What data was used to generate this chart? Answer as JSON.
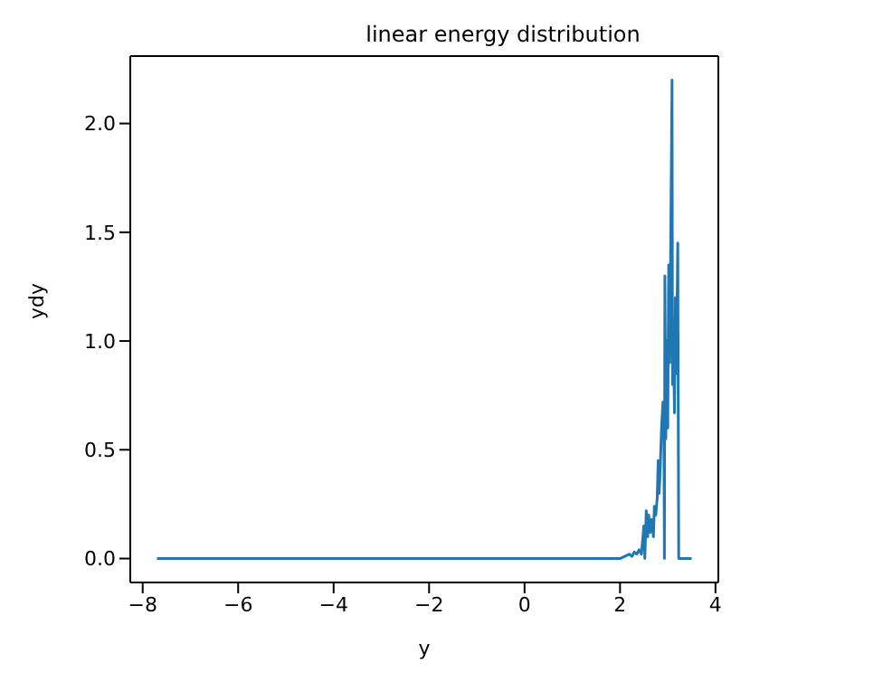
{
  "chart_data": {
    "type": "line",
    "title": "linear energy distribution",
    "xlabel": "y",
    "ylabel": "ydy",
    "x": [
      -7.7,
      1.7,
      1.9,
      2.0,
      2.1,
      2.2,
      2.25,
      2.3,
      2.35,
      2.4,
      2.45,
      2.48,
      2.5,
      2.52,
      2.55,
      2.58,
      2.6,
      2.63,
      2.66,
      2.7,
      2.72,
      2.75,
      2.78,
      2.8,
      2.82,
      2.84,
      2.87,
      2.9,
      2.92,
      2.93,
      2.94,
      2.96,
      2.98,
      3.0,
      3.02,
      3.04,
      3.06,
      3.09,
      3.1,
      3.12,
      3.14,
      3.16,
      3.18,
      3.21,
      3.23,
      3.5
    ],
    "series": [
      {
        "color": "#1f77b4",
        "values": [
          0,
          0,
          0,
          0,
          0.01,
          0.02,
          0.01,
          0.03,
          0.02,
          0.04,
          0.02,
          0.1,
          0.15,
          0.0,
          0.22,
          0.1,
          0.2,
          0.12,
          0.18,
          0.1,
          0.24,
          0.2,
          0.28,
          0.45,
          0.3,
          0.4,
          0.6,
          0.72,
          0.55,
          0,
          1.3,
          0.55,
          1.0,
          0.6,
          1.35,
          0.9,
          1.38,
          2.2,
          0.8,
          1.1,
          0.67,
          1.2,
          0.85,
          1.45,
          0,
          0
        ]
      }
    ],
    "xlim": [
      -8.26,
      4.06
    ],
    "xticks": [
      -8,
      -6,
      -4,
      -2,
      0,
      2,
      4
    ],
    "ylim": [
      -0.11,
      2.31
    ],
    "yticks": [
      {
        "value": 0,
        "label": "0.0"
      },
      0.5,
      {
        "value": 1,
        "label": "1.0"
      },
      1.5,
      {
        "value": 2,
        "label": "2.0"
      }
    ],
    "grid": false,
    "legend": false,
    "marker": "none",
    "line_style": "solid"
  }
}
